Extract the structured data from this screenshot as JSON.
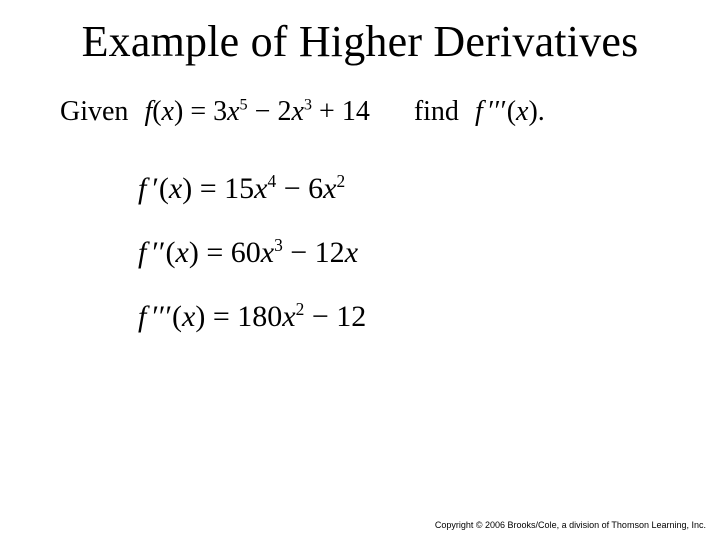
{
  "title": "Example of Higher Derivatives",
  "line1": {
    "given_label": "Given",
    "given_expr_html": "<span class='math'>f</span><span class='roman'>(</span><span class='math'>x</span><span class='roman'>)</span> <span class='roman'>=</span> <span class='roman'>3</span><span class='math'>x</span><span class='sup roman'>5</span> <span class='roman'>− 2</span><span class='math'>x</span><span class='sup roman'>3</span> <span class='roman'>+ 14</span>",
    "find_label": "find",
    "find_expr_html": "<span class='math'>f</span>&#8239;<span class='roman'>′′′</span><span class='roman'>(</span><span class='math'>x</span><span class='roman'>)</span><span class='dot'>.</span>"
  },
  "equations": [
    "<span class='math'>f</span>&#8239;<span class='roman'>′</span><span class='roman'>(</span><span class='math'>x</span><span class='roman'>)</span> <span class='roman'>=</span> <span class='roman'>15</span><span class='math'>x</span><span class='sup roman'>4</span> <span class='roman'>− 6</span><span class='math'>x</span><span class='sup roman'>2</span>",
    "<span class='math'>f</span>&#8239;<span class='roman'>′′</span><span class='roman'>(</span><span class='math'>x</span><span class='roman'>)</span> <span class='roman'>=</span> <span class='roman'>60</span><span class='math'>x</span><span class='sup roman'>3</span> <span class='roman'>− 12</span><span class='math'>x</span>",
    "<span class='math'>f</span>&#8239;<span class='roman'>′′′</span><span class='roman'>(</span><span class='math'>x</span><span class='roman'>)</span> <span class='roman'>=</span> <span class='roman'>180</span><span class='math'>x</span><span class='sup roman'>2</span> <span class='roman'>− 12</span>"
  ],
  "copyright": "Copyright © 2006 Brooks/Cole, a division of Thomson Learning, Inc."
}
